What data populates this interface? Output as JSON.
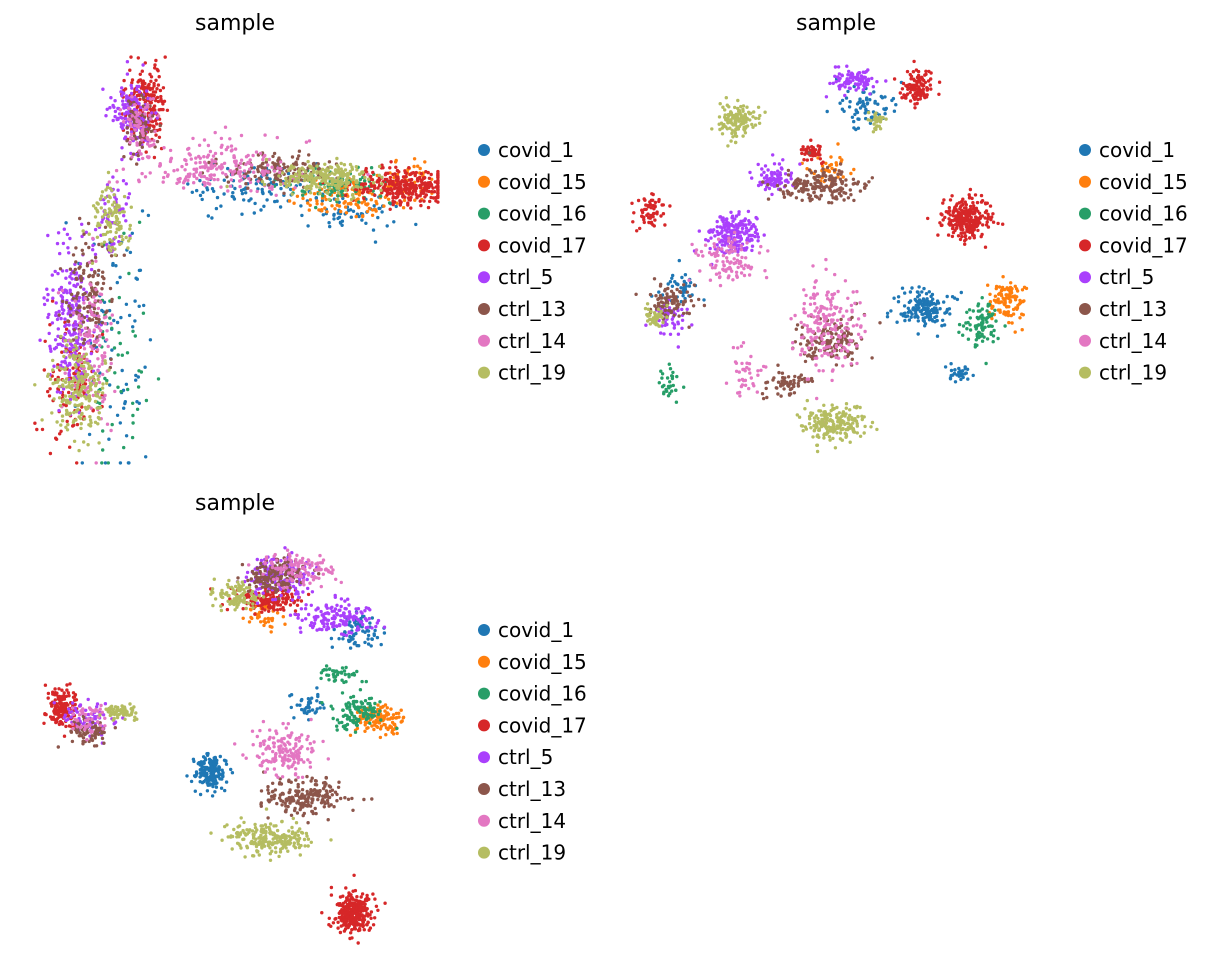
{
  "colors": {
    "covid_1": "#1f77b4",
    "covid_15": "#ff7f0e",
    "covid_16": "#279e68",
    "covid_17": "#d62728",
    "ctrl_5": "#aa40fc",
    "ctrl_13": "#8c564b",
    "ctrl_14": "#e377c2",
    "ctrl_19": "#b5bd61"
  },
  "chart_data": [
    {
      "type": "scatter",
      "title": "sample",
      "xlabel": "",
      "ylabel": "",
      "axes_visible": false,
      "legend_position": "right",
      "legend": [
        "covid_1",
        "covid_15",
        "covid_16",
        "covid_17",
        "ctrl_5",
        "ctrl_13",
        "ctrl_14",
        "ctrl_19"
      ],
      "xlim": [
        0,
        100
      ],
      "ylim": [
        0,
        100
      ],
      "series": [
        {
          "name": "covid_1",
          "clusters": [
            [
              20,
              30,
              10,
              30,
              80
            ],
            [
              55,
              68,
              15,
              6,
              110
            ],
            [
              80,
              62,
              12,
              5,
              60
            ]
          ]
        },
        {
          "name": "covid_15",
          "clusters": [
            [
              78,
              65,
              14,
              4,
              120
            ],
            [
              92,
              70,
              6,
              4,
              40
            ]
          ]
        },
        {
          "name": "covid_16",
          "clusters": [
            [
              75,
              68,
              12,
              4,
              90
            ],
            [
              22,
              25,
              8,
              25,
              50
            ]
          ]
        },
        {
          "name": "covid_17",
          "clusters": [
            [
              92,
              68,
              12,
              4,
              300
            ],
            [
              28,
              88,
              5,
              10,
              200
            ],
            [
              10,
              20,
              6,
              15,
              120
            ]
          ]
        },
        {
          "name": "ctrl_5",
          "clusters": [
            [
              10,
              35,
              6,
              18,
              250
            ],
            [
              25,
              85,
              5,
              10,
              150
            ],
            [
              20,
              60,
              4,
              10,
              60
            ]
          ]
        },
        {
          "name": "ctrl_13",
          "clusters": [
            [
              14,
              40,
              6,
              15,
              150
            ],
            [
              60,
              72,
              12,
              4,
              150
            ],
            [
              27,
              82,
              4,
              8,
              70
            ]
          ]
        },
        {
          "name": "ctrl_14",
          "clusters": [
            [
              45,
              73,
              20,
              6,
              220
            ],
            [
              15,
              30,
              6,
              18,
              120
            ],
            [
              27,
              83,
              4,
              8,
              60
            ]
          ]
        },
        {
          "name": "ctrl_19",
          "clusters": [
            [
              12,
              18,
              7,
              12,
              200
            ],
            [
              72,
              70,
              12,
              4,
              220
            ],
            [
              20,
              60,
              5,
              8,
              100
            ]
          ]
        }
      ]
    },
    {
      "type": "scatter",
      "title": "sample",
      "xlabel": "",
      "ylabel": "",
      "axes_visible": false,
      "legend_position": "right",
      "legend": [
        "covid_1",
        "covid_15",
        "covid_16",
        "covid_17",
        "ctrl_5",
        "ctrl_13",
        "ctrl_14",
        "ctrl_19"
      ],
      "xlim": [
        0,
        100
      ],
      "ylim": [
        0,
        100
      ],
      "series": [
        {
          "name": "covid_1",
          "clusters": [
            [
              72,
              38,
              6,
              5,
              160
            ],
            [
              58,
              88,
              8,
              5,
              70
            ],
            [
              12,
              44,
              6,
              4,
              40
            ],
            [
              80,
              22,
              3,
              2,
              30
            ]
          ]
        },
        {
          "name": "covid_15",
          "clusters": [
            [
              92,
              40,
              4,
              5,
              110
            ],
            [
              48,
              72,
              5,
              4,
              40
            ]
          ]
        },
        {
          "name": "covid_16",
          "clusters": [
            [
              86,
              34,
              5,
              6,
              90
            ],
            [
              10,
              20,
              3,
              4,
              30
            ]
          ]
        },
        {
          "name": "covid_17",
          "clusters": [
            [
              82,
              60,
              6,
              5,
              260
            ],
            [
              70,
              92,
              4,
              4,
              120
            ],
            [
              44,
              76,
              3,
              2,
              50
            ],
            [
              5,
              62,
              4,
              4,
              60
            ]
          ]
        },
        {
          "name": "ctrl_5",
          "clusters": [
            [
              25,
              56,
              6,
              5,
              200
            ],
            [
              55,
              94,
              5,
              3,
              90
            ],
            [
              35,
              70,
              5,
              3,
              80
            ],
            [
              10,
              36,
              4,
              5,
              50
            ]
          ]
        },
        {
          "name": "ctrl_13",
          "clusters": [
            [
              46,
              68,
              10,
              4,
              180
            ],
            [
              49,
              30,
              8,
              5,
              140
            ],
            [
              10,
              40,
              6,
              4,
              90
            ],
            [
              38,
              20,
              6,
              3,
              60
            ]
          ]
        },
        {
          "name": "ctrl_14",
          "clusters": [
            [
              48,
              34,
              8,
              12,
              200
            ],
            [
              24,
              50,
              8,
              6,
              100
            ],
            [
              28,
              22,
              4,
              6,
              40
            ]
          ]
        },
        {
          "name": "ctrl_19",
          "clusters": [
            [
              50,
              10,
              8,
              4,
              200
            ],
            [
              26,
              84,
              5,
              4,
              150
            ],
            [
              60,
              84,
              2,
              2,
              30
            ],
            [
              6,
              36,
              3,
              3,
              40
            ]
          ]
        }
      ]
    },
    {
      "type": "scatter",
      "title": "sample",
      "xlabel": "",
      "ylabel": "",
      "axes_visible": false,
      "legend_position": "right",
      "legend": [
        "covid_1",
        "covid_15",
        "covid_16",
        "covid_17",
        "ctrl_5",
        "ctrl_13",
        "ctrl_14",
        "ctrl_19"
      ],
      "xlim": [
        0,
        100
      ],
      "ylim": [
        0,
        100
      ],
      "series": [
        {
          "name": "covid_1",
          "clusters": [
            [
              44,
              42,
              4,
              4,
              160
            ],
            [
              80,
              76,
              6,
              4,
              70
            ],
            [
              68,
              58,
              4,
              4,
              40
            ]
          ]
        },
        {
          "name": "covid_15",
          "clusters": [
            [
              85,
              55,
              6,
              4,
              120
            ],
            [
              57,
              80,
              5,
              3,
              40
            ]
          ]
        },
        {
          "name": "covid_16",
          "clusters": [
            [
              80,
              57,
              6,
              4,
              110
            ],
            [
              75,
              66,
              5,
              2,
              40
            ]
          ]
        },
        {
          "name": "covid_17",
          "clusters": [
            [
              79,
              8,
              5,
              5,
              260
            ],
            [
              58,
              84,
              8,
              3,
              150
            ],
            [
              8,
              58,
              4,
              5,
              150
            ]
          ]
        },
        {
          "name": "ctrl_5",
          "clusters": [
            [
              61,
              90,
              8,
              5,
              200
            ],
            [
              75,
              80,
              10,
              4,
              150
            ],
            [
              15,
              55,
              6,
              4,
              80
            ]
          ]
        },
        {
          "name": "ctrl_13",
          "clusters": [
            [
              67,
              36,
              10,
              4,
              200
            ],
            [
              60,
              90,
              7,
              4,
              150
            ],
            [
              15,
              52,
              5,
              3,
              70
            ]
          ]
        },
        {
          "name": "ctrl_14",
          "clusters": [
            [
              62,
              47,
              8,
              6,
              150
            ],
            [
              66,
              92,
              9,
              4,
              110
            ],
            [
              14,
              55,
              4,
              4,
              50
            ]
          ]
        },
        {
          "name": "ctrl_19",
          "clusters": [
            [
              58,
              26,
              10,
              4,
              220
            ],
            [
              50,
              85,
              5,
              3,
              100
            ],
            [
              22,
              57,
              4,
              2,
              60
            ]
          ]
        }
      ]
    }
  ]
}
